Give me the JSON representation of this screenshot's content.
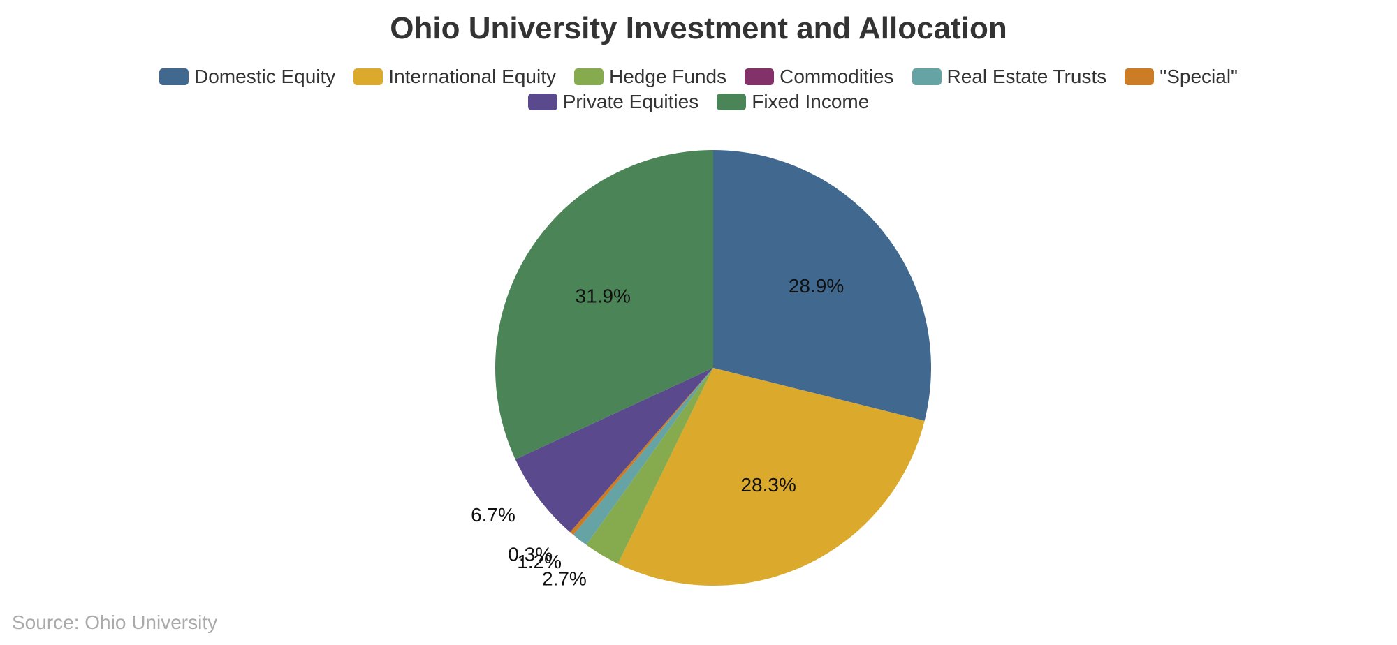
{
  "chart_data": {
    "type": "pie",
    "title": "Ohio University Investment and Allocation",
    "source": "Source: Ohio University",
    "legend_placement": "top",
    "slices": [
      {
        "name": "Domestic Equity",
        "value": 28.9,
        "label": "28.9%",
        "color": "#41688f"
      },
      {
        "name": "International Equity",
        "value": 28.3,
        "label": "28.3%",
        "color": "#dba92b"
      },
      {
        "name": "Hedge Funds",
        "value": 2.7,
        "label": "2.7%",
        "color": "#86ab4f"
      },
      {
        "name": "Commodities",
        "value": 0.0,
        "label": "",
        "color": "#823269"
      },
      {
        "name": "Real Estate Trusts",
        "value": 1.2,
        "label": "1.2%",
        "color": "#65a3a4"
      },
      {
        "name": "\"Special\"",
        "value": 0.3,
        "label": "0.3%",
        "color": "#cd7c26"
      },
      {
        "name": "Private Equities",
        "value": 6.7,
        "label": "6.7%",
        "color": "#5a4a8d"
      },
      {
        "name": "Fixed Income",
        "value": 31.9,
        "label": "31.9%",
        "color": "#4b8456"
      }
    ]
  }
}
